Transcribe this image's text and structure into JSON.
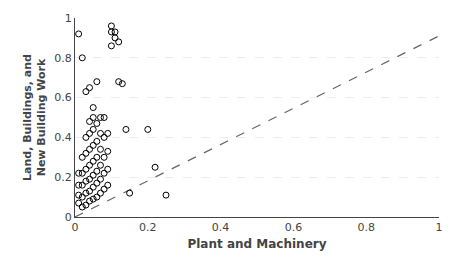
{
  "chart_data": {
    "type": "scatter",
    "xlabel": "Plant and Machinery",
    "ylabel": "Land, Buildings, and\nNew Building Work",
    "xlim": [
      0,
      1
    ],
    "ylim": [
      0,
      1
    ],
    "xticks": [
      0,
      0.2,
      0.4,
      0.6,
      0.8,
      1
    ],
    "yticks": [
      0,
      0.2,
      0.4,
      0.6,
      0.8,
      1
    ],
    "grid": "y",
    "series": [
      {
        "type": "line",
        "color": "#666666",
        "line_style": "dashed",
        "x": [
          0,
          1
        ],
        "values": [
          0,
          0.91
        ]
      },
      {
        "type": "scatter",
        "color": "#000000",
        "marker": "circle-open",
        "x": [
          0.01,
          0.01,
          0.01,
          0.01,
          0.01,
          0.02,
          0.02,
          0.02,
          0.02,
          0.02,
          0.02,
          0.03,
          0.03,
          0.03,
          0.03,
          0.03,
          0.03,
          0.03,
          0.04,
          0.04,
          0.04,
          0.04,
          0.04,
          0.04,
          0.04,
          0.04,
          0.05,
          0.05,
          0.05,
          0.05,
          0.05,
          0.05,
          0.05,
          0.05,
          0.06,
          0.06,
          0.06,
          0.06,
          0.06,
          0.06,
          0.06,
          0.07,
          0.07,
          0.07,
          0.07,
          0.07,
          0.07,
          0.08,
          0.08,
          0.08,
          0.08,
          0.08,
          0.09,
          0.09,
          0.09,
          0.09,
          0.1,
          0.1,
          0.1,
          0.11,
          0.11,
          0.12,
          0.12,
          0.13,
          0.14,
          0.15,
          0.2,
          0.22,
          0.25
        ],
        "values": [
          0.92,
          0.07,
          0.11,
          0.16,
          0.22,
          0.05,
          0.1,
          0.16,
          0.22,
          0.3,
          0.8,
          0.06,
          0.12,
          0.18,
          0.24,
          0.32,
          0.4,
          0.63,
          0.08,
          0.13,
          0.19,
          0.26,
          0.34,
          0.42,
          0.48,
          0.65,
          0.09,
          0.15,
          0.21,
          0.28,
          0.36,
          0.44,
          0.5,
          0.55,
          0.1,
          0.17,
          0.23,
          0.3,
          0.38,
          0.47,
          0.68,
          0.12,
          0.19,
          0.26,
          0.34,
          0.42,
          0.5,
          0.14,
          0.22,
          0.3,
          0.4,
          0.5,
          0.16,
          0.24,
          0.33,
          0.42,
          0.93,
          0.96,
          0.86,
          0.9,
          0.93,
          0.88,
          0.68,
          0.67,
          0.44,
          0.12,
          0.44,
          0.25,
          0.11
        ]
      }
    ]
  }
}
